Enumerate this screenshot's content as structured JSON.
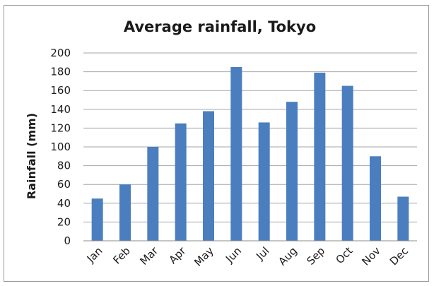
{
  "chart_data": {
    "type": "bar",
    "title": "Average rainfall, Tokyo",
    "xlabel": "",
    "ylabel": "Rainfall (mm)",
    "categories": [
      "Jan",
      "Feb",
      "Mar",
      "Apr",
      "May",
      "Jun",
      "Jul",
      "Aug",
      "Sep",
      "Oct",
      "Nov",
      "Dec"
    ],
    "values": [
      45,
      60,
      100,
      125,
      138,
      185,
      126,
      148,
      179,
      165,
      90,
      47
    ],
    "ylim": [
      0,
      200
    ],
    "yticks": [
      "0",
      "20",
      "40",
      "60",
      "80",
      "100",
      "120",
      "140",
      "160",
      "180",
      "200"
    ],
    "grid": true,
    "legend": "none",
    "bar_color": "#4a7ebf"
  }
}
